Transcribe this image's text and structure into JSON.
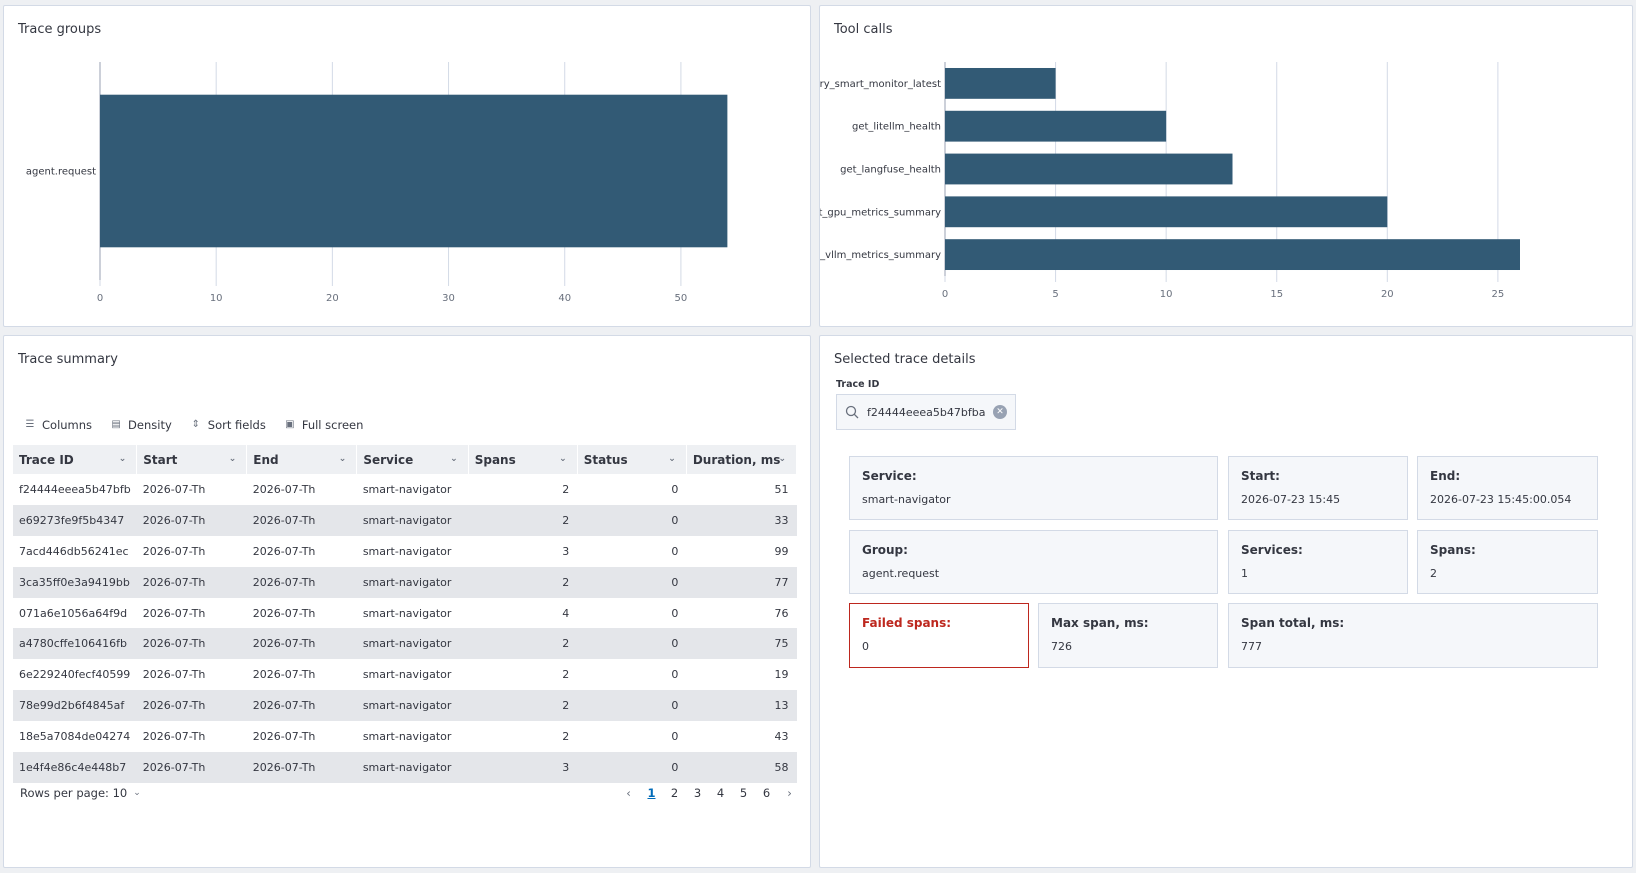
{
  "trace_groups": {
    "title": "Trace groups",
    "chart_data": {
      "type": "bar",
      "orientation": "horizontal",
      "categories": [
        "agent.request"
      ],
      "values": [
        54
      ],
      "title": "",
      "xlim": [
        0,
        55
      ],
      "xticks": [
        0,
        10,
        20,
        30,
        40,
        50
      ],
      "grid": true,
      "bar_color": "#325a75"
    },
    "tick_labels": [
      "0",
      "10",
      "20",
      "30",
      "40",
      "50"
    ]
  },
  "tool_calls": {
    "title": "Tool calls",
    "chart_data": {
      "type": "bar",
      "orientation": "horizontal",
      "categories": [
        "query_smart_monitor_latest",
        "get_litellm_health",
        "get_langfuse_health",
        "get_gpu_metrics_summary",
        "get_vllm_metrics_summary"
      ],
      "values": [
        5,
        10,
        13,
        20,
        26
      ],
      "title": "",
      "xlim": [
        0,
        26
      ],
      "xticks": [
        0,
        5,
        10,
        15,
        20,
        25
      ],
      "grid": true,
      "bar_color": "#325a75"
    },
    "tick_labels": [
      "0",
      "5",
      "10",
      "15",
      "20",
      "25"
    ]
  },
  "trace_summary": {
    "title": "Trace summary",
    "toolbar": {
      "columns": "Columns",
      "density": "Density",
      "sort": "Sort fields",
      "fullscreen": "Full screen"
    },
    "headers": [
      "Trace ID",
      "Start",
      "End",
      "Service",
      "Spans",
      "Status",
      "Duration, ms"
    ],
    "rows": [
      [
        "f24444eeea5b47bfb",
        "2026-07-Th",
        "2026-07-Th",
        "smart-navigator",
        "2",
        "0",
        "51"
      ],
      [
        "e69273fe9f5b4347",
        "2026-07-Th",
        "2026-07-Th",
        "smart-navigator",
        "2",
        "0",
        "33"
      ],
      [
        "7acd446db56241ec",
        "2026-07-Th",
        "2026-07-Th",
        "smart-navigator",
        "3",
        "0",
        "99"
      ],
      [
        "3ca35ff0e3a9419bb",
        "2026-07-Th",
        "2026-07-Th",
        "smart-navigator",
        "2",
        "0",
        "77"
      ],
      [
        "071a6e1056a64f9d",
        "2026-07-Th",
        "2026-07-Th",
        "smart-navigator",
        "4",
        "0",
        "76"
      ],
      [
        "a4780cffe106416fb",
        "2026-07-Th",
        "2026-07-Th",
        "smart-navigator",
        "2",
        "0",
        "75"
      ],
      [
        "6e229240fecf40599",
        "2026-07-Th",
        "2026-07-Th",
        "smart-navigator",
        "2",
        "0",
        "19"
      ],
      [
        "78e99d2b6f4845af",
        "2026-07-Th",
        "2026-07-Th",
        "smart-navigator",
        "2",
        "0",
        "13"
      ],
      [
        "18e5a7084de04274",
        "2026-07-Th",
        "2026-07-Th",
        "smart-navigator",
        "2",
        "0",
        "43"
      ],
      [
        "1e4f4e86c4e448b7",
        "2026-07-Th",
        "2026-07-Th",
        "smart-navigator",
        "3",
        "0",
        "58"
      ]
    ],
    "rows_per_page": "Rows per page: 10",
    "pages": [
      "1",
      "2",
      "3",
      "4",
      "5",
      "6"
    ],
    "current_page": "1"
  },
  "details": {
    "title": "Selected trace details",
    "trace_id_label": "Trace ID",
    "trace_id_value": "f24444eeea5b47bfba",
    "service_label": "Service:",
    "service_value": "smart-navigator",
    "start_label": "Start:",
    "start_value": "2026-07-23 15:45",
    "end_label": "End:",
    "end_value": "2026-07-23 15:45:00.054",
    "group_label": "Group:",
    "group_value": "agent.request",
    "services_label": "Services:",
    "services_value": "1",
    "spans_label": "Spans:",
    "spans_value": "2",
    "failed_label": "Failed spans:",
    "failed_value": "0",
    "max_span_label": "Max span, ms:",
    "max_span_value": "726",
    "span_total_label": "Span total, ms:",
    "span_total_value": "777"
  },
  "colors": {
    "bar": "#325a75",
    "danger": "#bd271e",
    "link": "#006bb8"
  }
}
